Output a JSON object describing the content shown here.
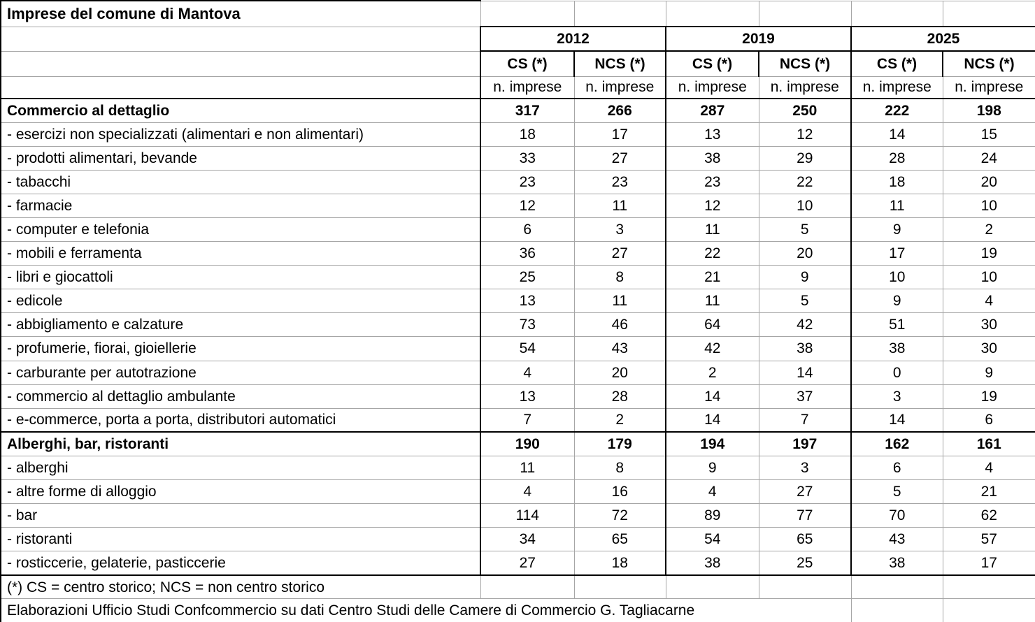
{
  "chart_data": {
    "type": "table",
    "title": "Imprese del comune di Mantova",
    "column_groups": [
      "2012",
      "2019",
      "2025"
    ],
    "sub_columns": [
      "CS (*)",
      "NCS (*)"
    ],
    "unit_row_label": "n. imprese",
    "rows": [
      {
        "label": "Commercio al dettaglio",
        "bold": true,
        "values": [
          317,
          266,
          287,
          250,
          222,
          198
        ]
      },
      {
        "label": "- esercizi non specializzati (alimentari e non alimentari)",
        "bold": false,
        "values": [
          18,
          17,
          13,
          12,
          14,
          15
        ]
      },
      {
        "label": "- prodotti alimentari, bevande",
        "bold": false,
        "values": [
          33,
          27,
          38,
          29,
          28,
          24
        ]
      },
      {
        "label": "- tabacchi",
        "bold": false,
        "values": [
          23,
          23,
          23,
          22,
          18,
          20
        ]
      },
      {
        "label": "- farmacie",
        "bold": false,
        "values": [
          12,
          11,
          12,
          10,
          11,
          10
        ]
      },
      {
        "label": "- computer e telefonia",
        "bold": false,
        "values": [
          6,
          3,
          11,
          5,
          9,
          2
        ]
      },
      {
        "label": "- mobili e ferramenta",
        "bold": false,
        "values": [
          36,
          27,
          22,
          20,
          17,
          19
        ]
      },
      {
        "label": "- libri e giocattoli",
        "bold": false,
        "values": [
          25,
          8,
          21,
          9,
          10,
          10
        ]
      },
      {
        "label": "- edicole",
        "bold": false,
        "values": [
          13,
          11,
          11,
          5,
          9,
          4
        ]
      },
      {
        "label": "- abbigliamento e calzature",
        "bold": false,
        "values": [
          73,
          46,
          64,
          42,
          51,
          30
        ]
      },
      {
        "label": "- profumerie, fiorai, gioiellerie",
        "bold": false,
        "values": [
          54,
          43,
          42,
          38,
          38,
          30
        ]
      },
      {
        "label": "- carburante per autotrazione",
        "bold": false,
        "values": [
          4,
          20,
          2,
          14,
          0,
          9
        ]
      },
      {
        "label": "- commercio al dettaglio ambulante",
        "bold": false,
        "values": [
          13,
          28,
          14,
          37,
          3,
          19
        ]
      },
      {
        "label": "- e-commerce, porta a porta, distributori automatici",
        "bold": false,
        "values": [
          7,
          2,
          14,
          7,
          14,
          6
        ]
      },
      {
        "label": "Alberghi, bar, ristoranti",
        "bold": true,
        "values": [
          190,
          179,
          194,
          197,
          162,
          161
        ]
      },
      {
        "label": "- alberghi",
        "bold": false,
        "values": [
          11,
          8,
          9,
          3,
          6,
          4
        ]
      },
      {
        "label": "- altre forme di alloggio",
        "bold": false,
        "values": [
          4,
          16,
          4,
          27,
          5,
          21
        ]
      },
      {
        "label": "- bar",
        "bold": false,
        "values": [
          114,
          72,
          89,
          77,
          70,
          62
        ]
      },
      {
        "label": "- ristoranti",
        "bold": false,
        "values": [
          34,
          65,
          54,
          65,
          43,
          57
        ]
      },
      {
        "label": "- rosticcerie, gelaterie, pasticcerie",
        "bold": false,
        "values": [
          27,
          18,
          38,
          25,
          38,
          17
        ]
      }
    ],
    "footnote": "(*) CS = centro storico; NCS = non centro storico",
    "source": "Elaborazioni Ufficio Studi Confcommercio su dati Centro Studi delle Camere di Commercio G. Tagliacarne",
    "layout_hints": {
      "section_row_indexes": [
        0,
        14
      ],
      "black_bottom_after_row_indexes": [
        13,
        19
      ]
    },
    "colors": {
      "grid_line": "#a6a6a6",
      "border": "#000000",
      "text": "#000000",
      "background": "#ffffff"
    }
  }
}
